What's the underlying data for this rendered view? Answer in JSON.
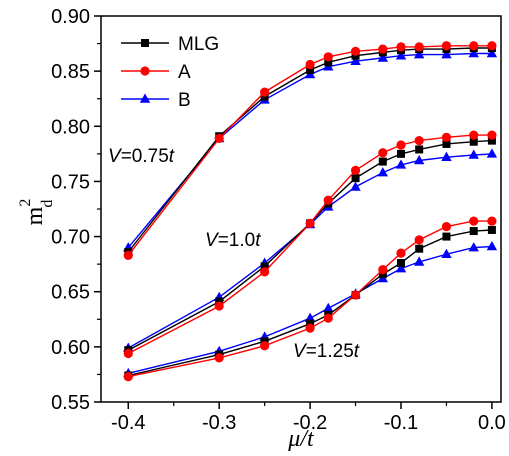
{
  "chart_data": {
    "type": "line",
    "xlabel": "μ/t",
    "ylabel": {
      "base": "m",
      "sup": "2",
      "sub": "d"
    },
    "xlim": [
      -0.43,
      0.01
    ],
    "ylim": [
      0.55,
      0.9
    ],
    "xticks": [
      -0.4,
      -0.3,
      -0.2,
      -0.1,
      0.0
    ],
    "xtick_labels": [
      "-0.4",
      "-0.3",
      "-0.2",
      "-0.1",
      "0.0"
    ],
    "yticks": [
      0.55,
      0.6,
      0.65,
      0.7,
      0.75,
      0.8,
      0.85,
      0.9
    ],
    "ytick_labels": [
      "0.55",
      "0.60",
      "0.65",
      "0.70",
      "0.75",
      "0.80",
      "0.85",
      "0.90"
    ],
    "grid": false,
    "legend_position": "top-left",
    "legend": [
      {
        "name": "MLG",
        "color": "#000000",
        "marker": "square"
      },
      {
        "name": "A",
        "color": "#ff0000",
        "marker": "circle"
      },
      {
        "name": "B",
        "color": "#0000ff",
        "marker": "triangle"
      }
    ],
    "annotations": [
      {
        "italic": "V",
        "rest": "=0.75",
        "italic2": "t"
      },
      {
        "italic": "V",
        "rest": "=1.0",
        "italic2": "t"
      },
      {
        "italic": "V",
        "rest": "=1.25",
        "italic2": "t"
      }
    ],
    "groups": [
      {
        "label": "V=0.75t",
        "x": [
          -0.4,
          -0.3,
          -0.25,
          -0.2,
          -0.18,
          -0.15,
          -0.12,
          -0.1,
          -0.08,
          -0.05,
          -0.02,
          0.0
        ],
        "series": [
          {
            "name": "MLG",
            "values": [
              0.686,
              0.791,
              0.827,
              0.851,
              0.858,
              0.864,
              0.867,
              0.869,
              0.87,
              0.87,
              0.871,
              0.871
            ]
          },
          {
            "name": "A",
            "values": [
              0.683,
              0.789,
              0.831,
              0.856,
              0.863,
              0.868,
              0.87,
              0.872,
              0.872,
              0.873,
              0.873,
              0.873
            ]
          },
          {
            "name": "B",
            "values": [
              0.69,
              0.789,
              0.824,
              0.847,
              0.854,
              0.859,
              0.862,
              0.864,
              0.865,
              0.865,
              0.866,
              0.866
            ]
          }
        ]
      },
      {
        "label": "V=1.0t",
        "x": [
          -0.4,
          -0.3,
          -0.25,
          -0.2,
          -0.18,
          -0.15,
          -0.12,
          -0.1,
          -0.08,
          -0.05,
          -0.02,
          0.0
        ],
        "series": [
          {
            "name": "MLG",
            "values": [
              0.597,
              0.641,
              0.673,
              0.712,
              0.73,
              0.753,
              0.768,
              0.775,
              0.779,
              0.784,
              0.786,
              0.787
            ]
          },
          {
            "name": "A",
            "values": [
              0.594,
              0.637,
              0.668,
              0.712,
              0.733,
              0.76,
              0.776,
              0.783,
              0.787,
              0.79,
              0.792,
              0.792
            ]
          },
          {
            "name": "B",
            "values": [
              0.599,
              0.645,
              0.676,
              0.711,
              0.727,
              0.745,
              0.758,
              0.765,
              0.769,
              0.772,
              0.774,
              0.775
            ]
          }
        ]
      },
      {
        "label": "V=1.25t",
        "x": [
          -0.4,
          -0.3,
          -0.25,
          -0.2,
          -0.18,
          -0.15,
          -0.12,
          -0.1,
          -0.08,
          -0.05,
          -0.02,
          0.0
        ],
        "series": [
          {
            "name": "MLG",
            "values": [
              0.574,
              0.593,
              0.605,
              0.621,
              0.629,
              0.647,
              0.666,
              0.676,
              0.689,
              0.7,
              0.705,
              0.706
            ]
          },
          {
            "name": "A",
            "values": [
              0.573,
              0.59,
              0.601,
              0.617,
              0.626,
              0.647,
              0.67,
              0.685,
              0.697,
              0.709,
              0.714,
              0.714
            ]
          },
          {
            "name": "B",
            "values": [
              0.576,
              0.596,
              0.609,
              0.626,
              0.635,
              0.648,
              0.662,
              0.671,
              0.677,
              0.684,
              0.69,
              0.691
            ]
          }
        ]
      }
    ]
  }
}
